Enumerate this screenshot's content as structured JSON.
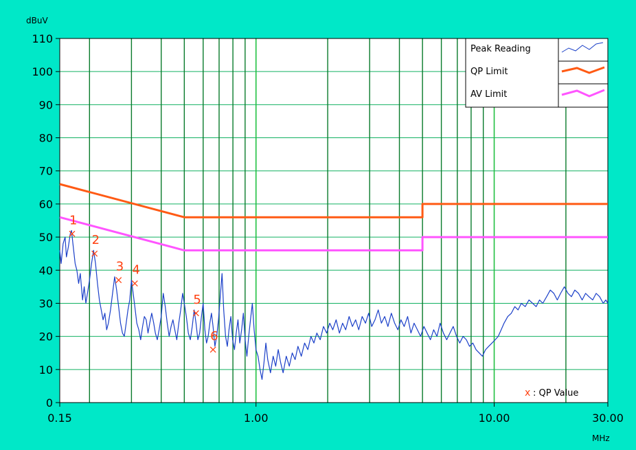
{
  "chart_data": {
    "type": "line",
    "ylabel": "dBuV",
    "xlabel": "MHz",
    "x_scale": "log",
    "xlim": [
      0.15,
      30.0
    ],
    "ylim": [
      0,
      110
    ],
    "yticks": [
      0,
      10,
      20,
      30,
      40,
      50,
      60,
      70,
      80,
      90,
      100,
      110
    ],
    "xtick_labels": [
      {
        "x": 0.15,
        "label": "0.15"
      },
      {
        "x": 1.0,
        "label": "1.00"
      },
      {
        "x": 10.0,
        "label": "10.00"
      },
      {
        "x": 30.0,
        "label": "30.00"
      }
    ],
    "grid": true,
    "legend_position": "top-right",
    "legend": [
      {
        "name": "Peak Reading",
        "color": "#1a3fc8",
        "style": "thin"
      },
      {
        "name": "QP Limit",
        "color": "#ff5a14",
        "style": "thick"
      },
      {
        "name": "AV Limit",
        "color": "#ff55ff",
        "style": "thick"
      }
    ],
    "series": [
      {
        "name": "QP Limit",
        "color": "#ff5a14",
        "points": [
          [
            0.15,
            66
          ],
          [
            0.5,
            56
          ],
          [
            5.0,
            56
          ],
          [
            5.0,
            60
          ],
          [
            30.0,
            60
          ]
        ]
      },
      {
        "name": "AV Limit",
        "color": "#ff55ff",
        "points": [
          [
            0.15,
            56
          ],
          [
            0.5,
            46
          ],
          [
            5.0,
            46
          ],
          [
            5.0,
            50
          ],
          [
            30.0,
            50
          ]
        ]
      },
      {
        "name": "Peak Reading",
        "color": "#1a3fc8",
        "points": [
          [
            0.15,
            46
          ],
          [
            0.152,
            42
          ],
          [
            0.155,
            48
          ],
          [
            0.158,
            50
          ],
          [
            0.16,
            44
          ],
          [
            0.163,
            47
          ],
          [
            0.166,
            51
          ],
          [
            0.168,
            52
          ],
          [
            0.171,
            47
          ],
          [
            0.174,
            42
          ],
          [
            0.177,
            40
          ],
          [
            0.18,
            36
          ],
          [
            0.183,
            39
          ],
          [
            0.187,
            31
          ],
          [
            0.19,
            35
          ],
          [
            0.193,
            30
          ],
          [
            0.197,
            34
          ],
          [
            0.2,
            37
          ],
          [
            0.204,
            42
          ],
          [
            0.208,
            46
          ],
          [
            0.212,
            42
          ],
          [
            0.216,
            36
          ],
          [
            0.22,
            31
          ],
          [
            0.224,
            28
          ],
          [
            0.228,
            25
          ],
          [
            0.232,
            27
          ],
          [
            0.236,
            22
          ],
          [
            0.24,
            24
          ],
          [
            0.245,
            28
          ],
          [
            0.25,
            33
          ],
          [
            0.255,
            38
          ],
          [
            0.26,
            34
          ],
          [
            0.265,
            29
          ],
          [
            0.27,
            24
          ],
          [
            0.275,
            21
          ],
          [
            0.28,
            20
          ],
          [
            0.285,
            24
          ],
          [
            0.29,
            28
          ],
          [
            0.295,
            31
          ],
          [
            0.3,
            37
          ],
          [
            0.305,
            33
          ],
          [
            0.31,
            29
          ],
          [
            0.316,
            24
          ],
          [
            0.322,
            22
          ],
          [
            0.328,
            19
          ],
          [
            0.334,
            23
          ],
          [
            0.34,
            26
          ],
          [
            0.346,
            25
          ],
          [
            0.352,
            21
          ],
          [
            0.358,
            24
          ],
          [
            0.365,
            27
          ],
          [
            0.372,
            24
          ],
          [
            0.378,
            21
          ],
          [
            0.385,
            19
          ],
          [
            0.392,
            22
          ],
          [
            0.4,
            26
          ],
          [
            0.408,
            33
          ],
          [
            0.416,
            29
          ],
          [
            0.424,
            24
          ],
          [
            0.432,
            20
          ],
          [
            0.44,
            23
          ],
          [
            0.448,
            25
          ],
          [
            0.456,
            22
          ],
          [
            0.465,
            19
          ],
          [
            0.474,
            24
          ],
          [
            0.483,
            28
          ],
          [
            0.492,
            33
          ],
          [
            0.5,
            30
          ],
          [
            0.51,
            26
          ],
          [
            0.52,
            21
          ],
          [
            0.53,
            19
          ],
          [
            0.54,
            23
          ],
          [
            0.55,
            28
          ],
          [
            0.56,
            24
          ],
          [
            0.57,
            19
          ],
          [
            0.58,
            21
          ],
          [
            0.59,
            26
          ],
          [
            0.6,
            30
          ],
          [
            0.61,
            22
          ],
          [
            0.62,
            18
          ],
          [
            0.63,
            20
          ],
          [
            0.64,
            24
          ],
          [
            0.65,
            27
          ],
          [
            0.66,
            23
          ],
          [
            0.672,
            17
          ],
          [
            0.684,
            20
          ],
          [
            0.696,
            25
          ],
          [
            0.708,
            32
          ],
          [
            0.72,
            39
          ],
          [
            0.732,
            28
          ],
          [
            0.745,
            20
          ],
          [
            0.758,
            17
          ],
          [
            0.77,
            22
          ],
          [
            0.784,
            26
          ],
          [
            0.798,
            19
          ],
          [
            0.812,
            16
          ],
          [
            0.826,
            21
          ],
          [
            0.84,
            25
          ],
          [
            0.855,
            18
          ],
          [
            0.87,
            22
          ],
          [
            0.885,
            27
          ],
          [
            0.9,
            19
          ],
          [
            0.916,
            14
          ],
          [
            0.932,
            20
          ],
          [
            0.948,
            25
          ],
          [
            0.965,
            30
          ],
          [
            0.982,
            22
          ],
          [
            1.0,
            16
          ],
          [
            1.02,
            14
          ],
          [
            1.04,
            10
          ],
          [
            1.06,
            7
          ],
          [
            1.08,
            12
          ],
          [
            1.1,
            18
          ],
          [
            1.12,
            13
          ],
          [
            1.15,
            9
          ],
          [
            1.18,
            14
          ],
          [
            1.21,
            11
          ],
          [
            1.24,
            16
          ],
          [
            1.27,
            12
          ],
          [
            1.3,
            9
          ],
          [
            1.34,
            14
          ],
          [
            1.38,
            11
          ],
          [
            1.42,
            15
          ],
          [
            1.46,
            13
          ],
          [
            1.5,
            17
          ],
          [
            1.55,
            14
          ],
          [
            1.6,
            18
          ],
          [
            1.65,
            16
          ],
          [
            1.7,
            20
          ],
          [
            1.75,
            18
          ],
          [
            1.8,
            21
          ],
          [
            1.86,
            19
          ],
          [
            1.92,
            23
          ],
          [
            1.98,
            21
          ],
          [
            2.04,
            24
          ],
          [
            2.1,
            22
          ],
          [
            2.17,
            25
          ],
          [
            2.24,
            21
          ],
          [
            2.31,
            24
          ],
          [
            2.38,
            22
          ],
          [
            2.46,
            26
          ],
          [
            2.54,
            23
          ],
          [
            2.62,
            25
          ],
          [
            2.7,
            22
          ],
          [
            2.79,
            26
          ],
          [
            2.88,
            24
          ],
          [
            2.97,
            27
          ],
          [
            3.06,
            23
          ],
          [
            3.16,
            25
          ],
          [
            3.26,
            28
          ],
          [
            3.36,
            24
          ],
          [
            3.47,
            26
          ],
          [
            3.58,
            23
          ],
          [
            3.7,
            27
          ],
          [
            3.82,
            24
          ],
          [
            3.94,
            22
          ],
          [
            4.06,
            25
          ],
          [
            4.19,
            23
          ],
          [
            4.33,
            26
          ],
          [
            4.47,
            21
          ],
          [
            4.61,
            24
          ],
          [
            4.76,
            22
          ],
          [
            4.91,
            20
          ],
          [
            5.07,
            23
          ],
          [
            5.23,
            21
          ],
          [
            5.4,
            19
          ],
          [
            5.57,
            22
          ],
          [
            5.75,
            20
          ],
          [
            5.93,
            24
          ],
          [
            6.12,
            21
          ],
          [
            6.32,
            19
          ],
          [
            6.52,
            21
          ],
          [
            6.73,
            23
          ],
          [
            6.95,
            20
          ],
          [
            7.17,
            18
          ],
          [
            7.4,
            20
          ],
          [
            7.64,
            19
          ],
          [
            7.88,
            17
          ],
          [
            8.13,
            18
          ],
          [
            8.39,
            16
          ],
          [
            8.65,
            15
          ],
          [
            8.92,
            14
          ],
          [
            9.2,
            16
          ],
          [
            9.49,
            17
          ],
          [
            9.79,
            18
          ],
          [
            10.1,
            19
          ],
          [
            10.4,
            20
          ],
          [
            10.7,
            22
          ],
          [
            11.0,
            24
          ],
          [
            11.4,
            26
          ],
          [
            11.8,
            27
          ],
          [
            12.2,
            29
          ],
          [
            12.6,
            28
          ],
          [
            13.0,
            30
          ],
          [
            13.5,
            29
          ],
          [
            14.0,
            31
          ],
          [
            14.5,
            30
          ],
          [
            15.0,
            29
          ],
          [
            15.5,
            31
          ],
          [
            16.0,
            30
          ],
          [
            16.6,
            32
          ],
          [
            17.2,
            34
          ],
          [
            17.8,
            33
          ],
          [
            18.4,
            31
          ],
          [
            19.0,
            33
          ],
          [
            19.7,
            35
          ],
          [
            20.4,
            33
          ],
          [
            21.1,
            32
          ],
          [
            21.8,
            34
          ],
          [
            22.6,
            33
          ],
          [
            23.4,
            31
          ],
          [
            24.2,
            33
          ],
          [
            25.0,
            32
          ],
          [
            25.9,
            31
          ],
          [
            26.8,
            33
          ],
          [
            27.7,
            32
          ],
          [
            28.7,
            30
          ],
          [
            29.4,
            31
          ],
          [
            30.0,
            30
          ]
        ]
      }
    ],
    "markers": [
      {
        "label": "1",
        "x": 0.169,
        "y": 51
      },
      {
        "label": "2",
        "x": 0.21,
        "y": 45
      },
      {
        "label": "3",
        "x": 0.265,
        "y": 37
      },
      {
        "label": "4",
        "x": 0.31,
        "y": 36
      },
      {
        "label": "5",
        "x": 0.56,
        "y": 27
      },
      {
        "label": "6",
        "x": 0.66,
        "y": 16
      }
    ],
    "annotation": {
      "symbol": "x",
      "text": ": QP Value"
    }
  }
}
